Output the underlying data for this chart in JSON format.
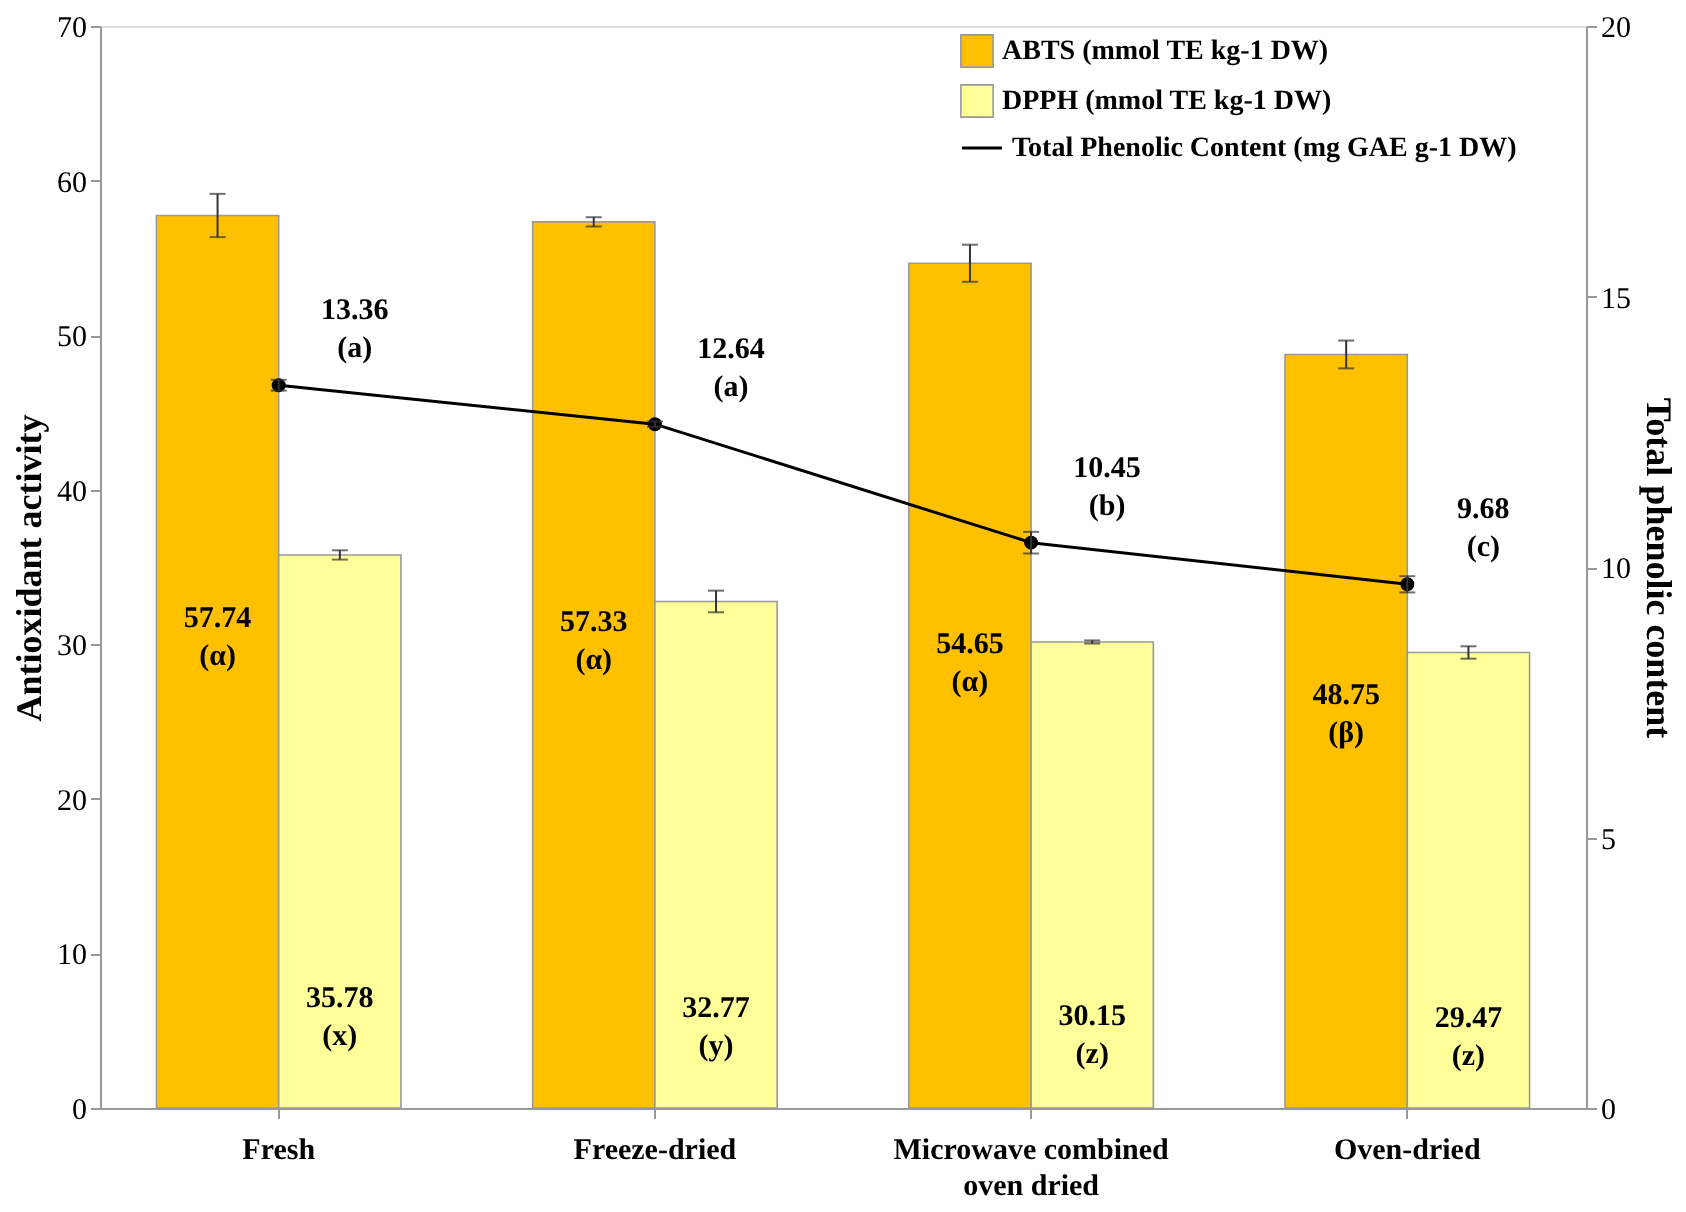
{
  "chart_data": {
    "type": "bar",
    "categories": [
      "Fresh",
      "Freeze-dried",
      "Microwave combined oven dried",
      "Oven-dried"
    ],
    "ylabel": "Antioxidant activity",
    "y2label": "Total phenolic content",
    "ylim": [
      0,
      70
    ],
    "yticks": [
      0,
      10,
      20,
      30,
      40,
      50,
      60,
      70
    ],
    "y2lim": [
      0,
      20
    ],
    "y2ticks": [
      0,
      5,
      10,
      15,
      20
    ],
    "grid": false,
    "legend": "top right",
    "series": [
      {
        "name": "ABTS (mmol TE kg-1 DW)",
        "color": "#ffc000",
        "values": [
          57.74,
          57.33,
          54.65,
          48.75
        ],
        "errors": [
          1.4,
          0.3,
          1.2,
          0.9
        ],
        "value_labels": [
          "57.74\n(α)",
          "57.33\n(α)",
          "54.65\n(α)",
          "48.75\n(β)"
        ]
      },
      {
        "name": "DPPH  (mmol TE kg-1 DW)",
        "color": "#ffff99",
        "values": [
          35.78,
          32.77,
          30.15,
          29.47
        ],
        "errors": [
          0.3,
          0.7,
          0.1,
          0.4
        ],
        "value_labels": [
          "35.78\n(x)",
          "32.77\n(y)",
          "30.15\n(z)",
          "29.47\n(z)"
        ]
      },
      {
        "name": "Total Phenolic Content (mg GAE g-1 DW)",
        "type": "line",
        "axis": "y2",
        "color": "#000000",
        "marker": "circle",
        "line_style": "solid",
        "values": [
          13.36,
          12.64,
          10.45,
          9.68
        ],
        "errors": [
          0.1,
          0.05,
          0.2,
          0.15
        ],
        "value_labels": [
          "13.36\n(a)",
          "12.64\n(a)",
          "10.45\n(b)",
          "9.68\n(c)"
        ]
      }
    ]
  }
}
